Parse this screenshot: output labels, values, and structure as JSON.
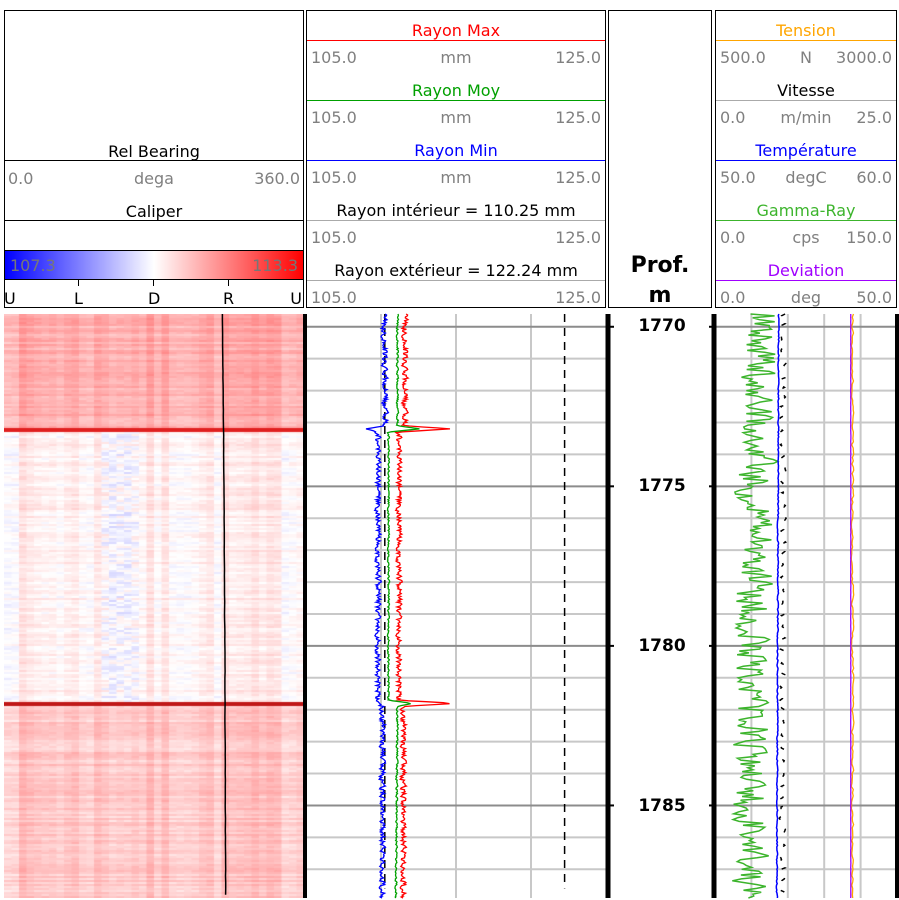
{
  "track1": {
    "curve1": {
      "name": "Rel Bearing",
      "min": "0.0",
      "unit": "dega",
      "max": "360.0",
      "color": "#000000"
    },
    "curve2": {
      "name": "Caliper",
      "color": "#000000"
    },
    "colorbar": {
      "min": "107.3",
      "max": "113.3",
      "low_color": "#0000ff",
      "mid_color": "#ffffff",
      "high_color": "#ff0000"
    },
    "orientation_labels": [
      "U",
      "L",
      "D",
      "R",
      "U"
    ]
  },
  "track2": {
    "curves": [
      {
        "name": "Rayon Max",
        "min": "105.0",
        "unit": "mm",
        "max": "125.0",
        "color": "#ff0000"
      },
      {
        "name": "Rayon Moy",
        "min": "105.0",
        "unit": "mm",
        "max": "125.0",
        "color": "#00a000"
      },
      {
        "name": "Rayon Min",
        "min": "105.0",
        "unit": "mm",
        "max": "125.0",
        "color": "#0000ff"
      },
      {
        "name": "Rayon intérieur = 110.25 mm",
        "min": "105.0",
        "unit": "",
        "max": "125.0",
        "color": "#000000"
      },
      {
        "name": "Rayon extérieur = 122.24 mm",
        "min": "105.0",
        "unit": "",
        "max": "125.0",
        "color": "#000000"
      }
    ]
  },
  "depth_track": {
    "title": "Prof.",
    "unit": "m",
    "labels": [
      "1770",
      "1775",
      "1780",
      "1785"
    ]
  },
  "track4": {
    "curves": [
      {
        "name": "Tension",
        "min": "500.0",
        "unit": "N",
        "max": "3000.0",
        "color": "#ffa500"
      },
      {
        "name": "Vitesse",
        "min": "0.0",
        "unit": "m/min",
        "max": "25.0",
        "color": "#000000"
      },
      {
        "name": "Température",
        "min": "50.0",
        "unit": "degC",
        "max": "60.0",
        "color": "#0000ff"
      },
      {
        "name": "Gamma-Ray",
        "min": "0.0",
        "unit": "cps",
        "max": "150.0",
        "color": "#3cb42c"
      },
      {
        "name": "Deviation",
        "min": "0.0",
        "unit": "deg",
        "max": "50.0",
        "color": "#a000ff"
      }
    ]
  },
  "chart_data": {
    "type": "line",
    "y_axis": {
      "label": "Prof. m",
      "range": [
        1769.6,
        1787.9
      ],
      "ticks": [
        1770,
        1775,
        1780,
        1785
      ],
      "inverted": true
    },
    "grid": true,
    "tracks": [
      {
        "series": [
          {
            "name": "Rel Bearing",
            "xlim": [
              0,
              360
            ],
            "depth": [
              1769.6,
              1775,
              1780,
              1787.9
            ],
            "values": [
              262,
              264,
              265,
              266
            ]
          }
        ],
        "image": "Caliper heatmap (107.3–113.3), mostly light red, whiter between 1773.2 and 1781.8, red bands at 1773.2 and 1781.8"
      },
      {
        "series": [
          {
            "name": "Rayon Max",
            "xlim": [
              105,
              125
            ],
            "depth": [
              1769.6,
              1773.1,
              1773.2,
              1773.3,
              1781.7,
              1781.8,
              1781.9,
              1787.9
            ],
            "values": [
              111.6,
              111.6,
              114.7,
              111.2,
              111.2,
              114.7,
              111.5,
              111.5
            ]
          },
          {
            "name": "Rayon Moy",
            "xlim": [
              105,
              125
            ],
            "depth": [
              1769.6,
              1773.1,
              1773.2,
              1773.3,
              1781.7,
              1781.8,
              1781.9,
              1787.9
            ],
            "values": [
              111.1,
              111.1,
              112.6,
              110.5,
              110.5,
              112.0,
              111.1,
              111.0
            ]
          },
          {
            "name": "Rayon Min",
            "xlim": [
              105,
              125
            ],
            "depth": [
              1769.6,
              1773.1,
              1773.2,
              1773.3,
              1781.7,
              1781.8,
              1781.9,
              1787.9
            ],
            "values": [
              110.2,
              110.3,
              109.1,
              109.8,
              109.8,
              109.7,
              110.1,
              110.1
            ]
          },
          {
            "name": "Rayon intérieur",
            "xlim": [
              105,
              125
            ],
            "constant": 110.25
          },
          {
            "name": "Rayon extérieur",
            "xlim": [
              105,
              125
            ],
            "constant": 122.24
          }
        ]
      },
      {
        "series": [
          {
            "name": "Tension",
            "xlim": [
              500,
              3000
            ],
            "depth": [
              1769.6,
              1787.9
            ],
            "values": [
              2390,
              2390
            ]
          },
          {
            "name": "Vitesse",
            "xlim": [
              0,
              25
            ],
            "depth": [
              1769.6,
              1787.9
            ],
            "values": [
              9.3,
              9.3
            ]
          },
          {
            "name": "Température",
            "xlim": [
              50,
              60
            ],
            "depth": [
              1769.6,
              1787.9
            ],
            "values": [
              53.5,
              53.4
            ]
          },
          {
            "name": "Gamma-Ray",
            "xlim": [
              0,
              150
            ],
            "depth": [
              1769.6,
              1775,
              1780,
              1787.9
            ],
            "values": [
              38,
              33,
              32,
              30
            ]
          },
          {
            "name": "Deviation",
            "xlim": [
              0,
              50
            ],
            "depth": [
              1769.6,
              1787.9
            ],
            "values": [
              37.3,
              37.3
            ]
          }
        ]
      }
    ]
  }
}
